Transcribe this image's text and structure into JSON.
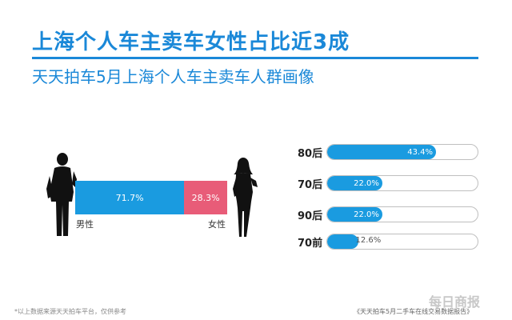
{
  "header": {
    "title": "上海个人车主卖车女性占比近3成",
    "subtitle": "天天拍车5月上海个人车主卖车人群画像"
  },
  "chart_data": [
    {
      "type": "bar",
      "orientation": "stacked-horizontal",
      "categories": [
        "男性",
        "女性"
      ],
      "values": [
        71.7,
        28.3
      ],
      "labels": [
        "71.7%",
        "28.3%"
      ],
      "colors": [
        "#1a9be0",
        "#e85c78"
      ]
    },
    {
      "type": "bar",
      "orientation": "horizontal",
      "categories": [
        "80后",
        "70后",
        "90后",
        "70前"
      ],
      "values": [
        43.4,
        22.0,
        22.0,
        12.6
      ],
      "labels": [
        "43.4%",
        "22.0%",
        "22.0%",
        "12.6%"
      ],
      "xlim": [
        0,
        100
      ],
      "color": "#1a9be0"
    }
  ],
  "footer": {
    "note": "*以上数据来源天天拍车平台，仅供参考",
    "watermark": "每日商报",
    "source": "《天天拍车5月二手车在线交易数据报告》"
  }
}
